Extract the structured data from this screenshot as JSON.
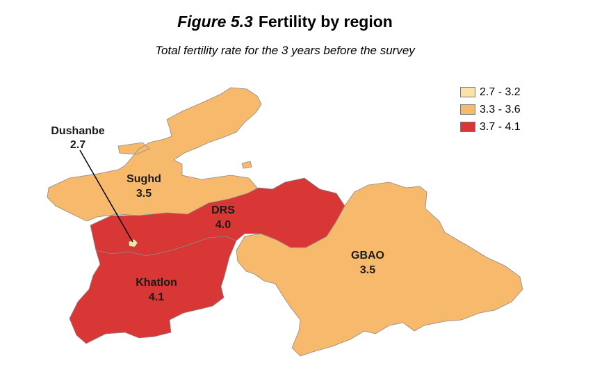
{
  "figure": {
    "number": "Figure 5.3",
    "title": "Fertility by region",
    "subtitle": "Total fertility rate for the 3 years before the survey"
  },
  "legend": [
    {
      "label": "2.7 - 3.2",
      "color": "#fae3a8"
    },
    {
      "label": "3.3 - 3.6",
      "color": "#f7b96b"
    },
    {
      "label": "3.7 - 4.1",
      "color": "#d93636"
    }
  ],
  "regions": [
    {
      "id": "sughd",
      "name": "Sughd",
      "value": "3.5",
      "color": "#f7b96b"
    },
    {
      "id": "drs",
      "name": "DRS",
      "value": "4.0",
      "color": "#d93636"
    },
    {
      "id": "khatlon",
      "name": "Khatlon",
      "value": "4.1",
      "color": "#d93636"
    },
    {
      "id": "gbao",
      "name": "GBAO",
      "value": "3.5",
      "color": "#f7b96b"
    },
    {
      "id": "dushanbe",
      "name": "Dushanbe",
      "value": "2.7",
      "color": "#fae3a8"
    }
  ]
}
